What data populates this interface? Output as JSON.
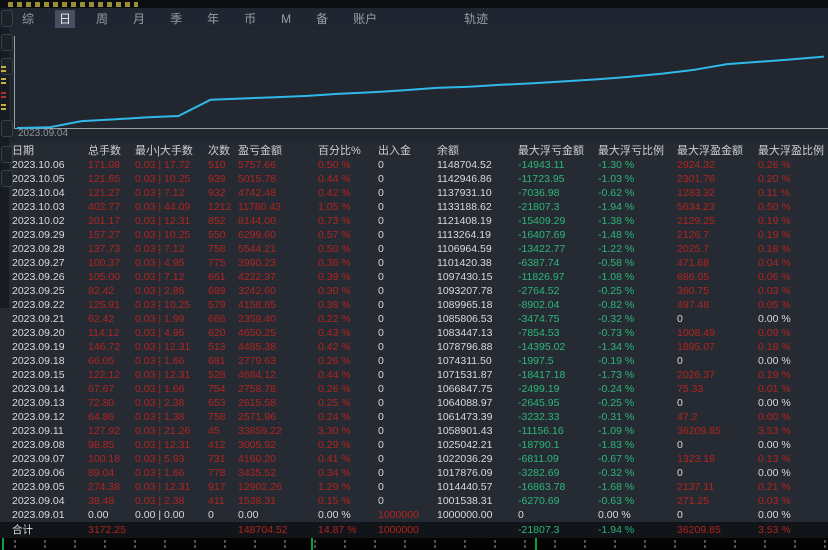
{
  "menu": {
    "items": [
      {
        "label": "综",
        "selected": false
      },
      {
        "label": "日",
        "selected": true
      },
      {
        "label": "周",
        "selected": false
      },
      {
        "label": "月",
        "selected": false
      },
      {
        "label": "季",
        "selected": false
      },
      {
        "label": "年",
        "selected": false
      },
      {
        "label": "币",
        "selected": false
      },
      {
        "label": "M",
        "selected": false
      },
      {
        "label": "备",
        "selected": false
      },
      {
        "label": "账户",
        "selected": false
      }
    ],
    "right_item": "轨迹"
  },
  "chart": {
    "type": "line",
    "start_label": "2023.09.04",
    "line_color": "#2fb9e8",
    "dates": [
      "2023.09.01",
      "2023.09.04",
      "2023.09.05",
      "2023.09.06",
      "2023.09.07",
      "2023.09.08",
      "2023.09.11",
      "2023.09.12",
      "2023.09.13",
      "2023.09.14",
      "2023.09.15",
      "2023.09.18",
      "2023.09.19",
      "2023.09.20",
      "2023.09.21",
      "2023.09.22",
      "2023.09.25",
      "2023.09.26",
      "2023.09.27",
      "2023.09.28",
      "2023.09.29",
      "2023.10.02",
      "2023.10.03",
      "2023.10.04",
      "2023.10.05",
      "2023.10.06"
    ],
    "balances": [
      1000000.0,
      1001538.31,
      1014440.57,
      1017876.09,
      1022036.29,
      1025042.21,
      1058901.43,
      1061473.39,
      1064088.97,
      1066847.75,
      1071531.87,
      1074311.5,
      1078796.88,
      1083447.13,
      1085806.53,
      1089965.18,
      1093207.78,
      1097430.15,
      1101420.38,
      1106964.59,
      1113264.19,
      1121408.19,
      1133188.62,
      1137931.1,
      1142946.86,
      1148704.52
    ]
  },
  "table": {
    "columns": [
      {
        "key": "date",
        "label": "日期"
      },
      {
        "key": "lots",
        "label": "总手数"
      },
      {
        "key": "minmax",
        "label": "最小|大手数"
      },
      {
        "key": "times",
        "label": "次数"
      },
      {
        "key": "pnl",
        "label": "盈亏金额"
      },
      {
        "key": "pct",
        "label": "百分比%"
      },
      {
        "key": "inout",
        "label": "出入金"
      },
      {
        "key": "balance",
        "label": "余额"
      },
      {
        "key": "mfl",
        "label": "最大浮亏金额"
      },
      {
        "key": "mfl_pct",
        "label": "最大浮亏比例"
      },
      {
        "key": "mfp",
        "label": "最大浮盈金额"
      },
      {
        "key": "mfp_pct",
        "label": "最大浮盈比例"
      }
    ],
    "default_colors": {
      "date": "w",
      "lots": "r",
      "minmax": "r",
      "times": "r",
      "pnl": "r",
      "pct": "r",
      "inout": "w",
      "balance": "w",
      "mfl": "g",
      "mfl_pct": "g",
      "mfp": "r",
      "mfp_pct": "r"
    },
    "rows": [
      {
        "date": "2023.10.06",
        "lots": "171.08",
        "minmax": "0.03 | 17.72",
        "times": "510",
        "pnl": "5757.66",
        "pct": "0.50 %",
        "inout": "0",
        "balance": "1148704.52",
        "mfl": "-14943.11",
        "mfl_pct": "-1.30 %",
        "mfp": "2924.32",
        "mfp_pct": "0.26 %"
      },
      {
        "date": "2023.10.05",
        "lots": "121.65",
        "minmax": "0.03 | 10.25",
        "times": "939",
        "pnl": "5015.78",
        "pct": "0.44 %",
        "inout": "0",
        "balance": "1142946.86",
        "mfl": "-11723.95",
        "mfl_pct": "-1.03 %",
        "mfp": "2301.76",
        "mfp_pct": "0.20 %"
      },
      {
        "date": "2023.10.04",
        "lots": "121.27",
        "minmax": "0.03 | 7.12",
        "times": "932",
        "pnl": "4742.48",
        "pct": "0.42 %",
        "inout": "0",
        "balance": "1137931.10",
        "mfl": "-7036.98",
        "mfl_pct": "-0.62 %",
        "mfp": "1283.32",
        "mfp_pct": "0.11 %"
      },
      {
        "date": "2023.10.03",
        "lots": "402.77",
        "minmax": "0.03 | 44.09",
        "times": "1212",
        "pnl": "11780.43",
        "pct": "1.05 %",
        "inout": "0",
        "balance": "1133188.62",
        "mfl": "-21807.3",
        "mfl_pct": "-1.94 %",
        "mfp": "5634.23",
        "mfp_pct": "0.50 %"
      },
      {
        "date": "2023.10.02",
        "lots": "201.17",
        "minmax": "0.03 | 12.31",
        "times": "852",
        "pnl": "8144.00",
        "pct": "0.73 %",
        "inout": "0",
        "balance": "1121408.19",
        "mfl": "-15409.29",
        "mfl_pct": "-1.38 %",
        "mfp": "2129.25",
        "mfp_pct": "0.19 %"
      },
      {
        "date": "2023.09.29",
        "lots": "157.27",
        "minmax": "0.03 | 10.25",
        "times": "550",
        "pnl": "6299.60",
        "pct": "0.57 %",
        "inout": "0",
        "balance": "1113264.19",
        "mfl": "-16407.69",
        "mfl_pct": "-1.48 %",
        "mfp": "2126.7",
        "mfp_pct": "0.19 %"
      },
      {
        "date": "2023.09.28",
        "lots": "137.73",
        "minmax": "0.03 | 7.12",
        "times": "758",
        "pnl": "5544.21",
        "pct": "0.50 %",
        "inout": "0",
        "balance": "1106964.59",
        "mfl": "-13422.77",
        "mfl_pct": "-1.22 %",
        "mfp": "2025.7",
        "mfp_pct": "0.18 %"
      },
      {
        "date": "2023.09.27",
        "lots": "100.37",
        "minmax": "0.03 | 4.95",
        "times": "775",
        "pnl": "3990.23",
        "pct": "0.36 %",
        "inout": "0",
        "balance": "1101420.38",
        "mfl": "-6387.74",
        "mfl_pct": "-0.58 %",
        "mfp": "471.68",
        "mfp_pct": "0.04 %"
      },
      {
        "date": "2023.09.26",
        "lots": "105.00",
        "minmax": "0.03 | 7.12",
        "times": "661",
        "pnl": "4222.37",
        "pct": "0.39 %",
        "inout": "0",
        "balance": "1097430.15",
        "mfl": "-11826.97",
        "mfl_pct": "-1.08 %",
        "mfp": "686.05",
        "mfp_pct": "0.06 %"
      },
      {
        "date": "2023.09.25",
        "lots": "82.42",
        "minmax": "0.03 | 2.86",
        "times": "689",
        "pnl": "3242.60",
        "pct": "0.30 %",
        "inout": "0",
        "balance": "1093207.78",
        "mfl": "-2764.52",
        "mfl_pct": "-0.25 %",
        "mfp": "360.75",
        "mfp_pct": "0.03 %"
      },
      {
        "date": "2023.09.22",
        "lots": "125.91",
        "minmax": "0.03 | 10.25",
        "times": "579",
        "pnl": "4158.65",
        "pct": "0.38 %",
        "inout": "0",
        "balance": "1089965.18",
        "mfl": "-8902.04",
        "mfl_pct": "-0.82 %",
        "mfp": "497.48",
        "mfp_pct": "0.05 %"
      },
      {
        "date": "2023.09.21",
        "lots": "62.42",
        "minmax": "0.03 | 1.99",
        "times": "666",
        "pnl": "2359.40",
        "pct": "0.22 %",
        "inout": "0",
        "balance": "1085806.53",
        "mfl": "-3474.75",
        "mfl_pct": "-0.32 %",
        "mfp": "0",
        "mfp_pct": "0.00 %",
        "ov": {
          "mfp": "w",
          "mfp_pct": "w"
        }
      },
      {
        "date": "2023.09.20",
        "lots": "114.12",
        "minmax": "0.03 | 4.95",
        "times": "620",
        "pnl": "4650.25",
        "pct": "0.43 %",
        "inout": "0",
        "balance": "1083447.13",
        "mfl": "-7854.53",
        "mfl_pct": "-0.73 %",
        "mfp": "1008.49",
        "mfp_pct": "0.09 %"
      },
      {
        "date": "2023.09.19",
        "lots": "146.72",
        "minmax": "0.03 | 12.31",
        "times": "513",
        "pnl": "4485.38",
        "pct": "0.42 %",
        "inout": "0",
        "balance": "1078796.88",
        "mfl": "-14395.02",
        "mfl_pct": "-1.34 %",
        "mfp": "1895.07",
        "mfp_pct": "0.18 %"
      },
      {
        "date": "2023.09.18",
        "lots": "66.05",
        "minmax": "0.03 | 1.66",
        "times": "681",
        "pnl": "2779.63",
        "pct": "0.26 %",
        "inout": "0",
        "balance": "1074311.50",
        "mfl": "-1997.5",
        "mfl_pct": "-0.19 %",
        "mfp": "0",
        "mfp_pct": "0.00 %",
        "ov": {
          "mfp": "w",
          "mfp_pct": "w"
        }
      },
      {
        "date": "2023.09.15",
        "lots": "122.12",
        "minmax": "0.03 | 12.31",
        "times": "528",
        "pnl": "4684.12",
        "pct": "0.44 %",
        "inout": "0",
        "balance": "1071531.87",
        "mfl": "-18417.18",
        "mfl_pct": "-1.73 %",
        "mfp": "2026.37",
        "mfp_pct": "0.19 %"
      },
      {
        "date": "2023.09.14",
        "lots": "67.67",
        "minmax": "0.03 | 1.66",
        "times": "754",
        "pnl": "2758.78",
        "pct": "0.26 %",
        "inout": "0",
        "balance": "1066847.75",
        "mfl": "-2499.19",
        "mfl_pct": "-0.24 %",
        "mfp": "75.33",
        "mfp_pct": "0.01 %"
      },
      {
        "date": "2023.09.13",
        "lots": "72.80",
        "minmax": "0.03 | 2.38",
        "times": "653",
        "pnl": "2615.58",
        "pct": "0.25 %",
        "inout": "0",
        "balance": "1064088.97",
        "mfl": "-2645.95",
        "mfl_pct": "-0.25 %",
        "mfp": "0",
        "mfp_pct": "0.00 %",
        "ov": {
          "mfp": "w",
          "mfp_pct": "w"
        }
      },
      {
        "date": "2023.09.12",
        "lots": "64.86",
        "minmax": "0.03 | 1.38",
        "times": "758",
        "pnl": "2571.96",
        "pct": "0.24 %",
        "inout": "0",
        "balance": "1061473.39",
        "mfl": "-3232.33",
        "mfl_pct": "-0.31 %",
        "mfp": "47.2",
        "mfp_pct": "0.00 %"
      },
      {
        "date": "2023.09.11",
        "lots": "127.92",
        "minmax": "0.03 | 21.26",
        "times": "45",
        "pnl": "33859.22",
        "pct": "3.30 %",
        "inout": "0",
        "balance": "1058901.43",
        "mfl": "-11156.16",
        "mfl_pct": "-1.09 %",
        "mfp": "36209.85",
        "mfp_pct": "3.53 %"
      },
      {
        "date": "2023.09.08",
        "lots": "98.85",
        "minmax": "0.03 | 12.31",
        "times": "412",
        "pnl": "3005.92",
        "pct": "0.29 %",
        "inout": "0",
        "balance": "1025042.21",
        "mfl": "-18790.1",
        "mfl_pct": "-1.83 %",
        "mfp": "0",
        "mfp_pct": "0.00 %",
        "ov": {
          "mfp": "w",
          "mfp_pct": "w"
        }
      },
      {
        "date": "2023.09.07",
        "lots": "100.18",
        "minmax": "0.03 | 5.93",
        "times": "731",
        "pnl": "4160.20",
        "pct": "0.41 %",
        "inout": "0",
        "balance": "1022036.29",
        "mfl": "-6811.09",
        "mfl_pct": "-0.67 %",
        "mfp": "1323.18",
        "mfp_pct": "0.13 %"
      },
      {
        "date": "2023.09.06",
        "lots": "89.04",
        "minmax": "0.03 | 1.66",
        "times": "778",
        "pnl": "3435.52",
        "pct": "0.34 %",
        "inout": "0",
        "balance": "1017876.09",
        "mfl": "-3282.69",
        "mfl_pct": "-0.32 %",
        "mfp": "0",
        "mfp_pct": "0.00 %",
        "ov": {
          "mfp": "w",
          "mfp_pct": "w"
        }
      },
      {
        "date": "2023.09.05",
        "lots": "274.38",
        "minmax": "0.03 | 12.31",
        "times": "917",
        "pnl": "12902.26",
        "pct": "1.29 %",
        "inout": "0",
        "balance": "1014440.57",
        "mfl": "-16863.78",
        "mfl_pct": "-1.68 %",
        "mfp": "2137.11",
        "mfp_pct": "0.21 %"
      },
      {
        "date": "2023.09.04",
        "lots": "38.48",
        "minmax": "0.03 | 2.38",
        "times": "411",
        "pnl": "1538.31",
        "pct": "0.15 %",
        "inout": "0",
        "balance": "1001538.31",
        "mfl": "-6270.69",
        "mfl_pct": "-0.63 %",
        "mfp": "271.25",
        "mfp_pct": "0.03 %"
      },
      {
        "date": "2023.09.01",
        "lots": "0.00",
        "minmax": "0.00 | 0.00",
        "times": "0",
        "pnl": "0.00",
        "pct": "0.00 %",
        "inout": "1000000",
        "balance": "1000000.00",
        "mfl": "0",
        "mfl_pct": "0.00 %",
        "mfp": "0",
        "mfp_pct": "0.00 %",
        "ov": {
          "lots": "w",
          "minmax": "w",
          "times": "w",
          "pnl": "w",
          "pct": "w",
          "inout": "r",
          "mfl": "w",
          "mfl_pct": "w",
          "mfp": "w",
          "mfp_pct": "w"
        }
      }
    ],
    "total": {
      "date": "合计",
      "lots": "3172.25",
      "minmax": "",
      "times": "",
      "pnl": "148704.52",
      "pct": "14.87 %",
      "inout": "1000000",
      "balance": "",
      "mfl": "-21807.3",
      "mfl_pct": "-1.94 %",
      "mfp": "36209.85",
      "mfp_pct": "3.53 %",
      "ov": {
        "inout": "r"
      }
    }
  },
  "colors": {
    "profit_red": "#b2241f",
    "loss_green": "#2db678",
    "neutral_white": "#d8dadd",
    "equity_line": "#2fb9e8",
    "axis_green_tick": "#0aa03c",
    "selected_tab_bg": "#46505f"
  }
}
